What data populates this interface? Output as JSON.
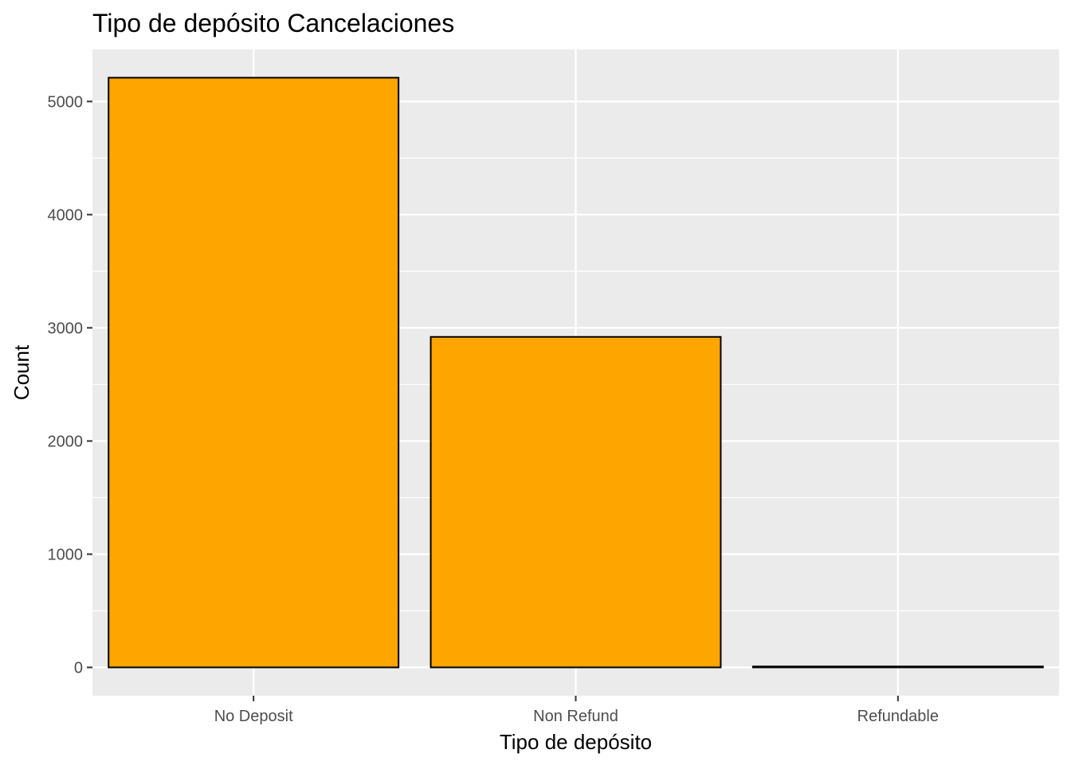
{
  "chart_data": {
    "type": "bar",
    "title": "Tipo de depósito Cancelaciones",
    "xlabel": "Tipo de depósito",
    "ylabel": "Count",
    "categories": [
      "No Deposit",
      "Non Refund",
      "Refundable"
    ],
    "values": [
      5210,
      2920,
      8
    ],
    "ylim": [
      -250,
      5460
    ],
    "yticks": [
      0,
      1000,
      2000,
      3000,
      4000,
      5000
    ],
    "grid": true,
    "legend": "none",
    "colors": {
      "bar_fill": "#FFA500",
      "bar_outline": "#000000",
      "panel_background": "#EBEBEB",
      "grid_line": "#FFFFFF",
      "tick_text": "#4D4D4D"
    }
  }
}
